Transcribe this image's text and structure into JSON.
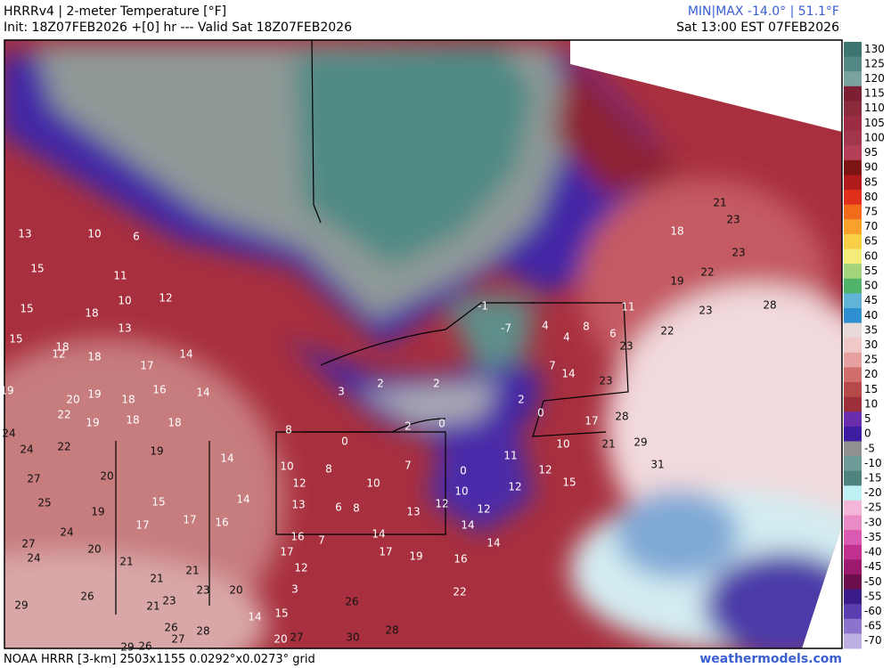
{
  "header": {
    "title": "HRRRv4 | 2-meter Temperature [°F]",
    "init": "Init: 18Z07FEB2026 +[0] hr --- Valid Sat 18Z07FEB2026",
    "minmax": "MIN|MAX -14.0° | 51.1°F",
    "valid_local": "Sat 13:00 EST 07FEB2026"
  },
  "footer": {
    "source": "NOAA HRRR [3-km] 2503x1155 0.0292°x0.0273° grid",
    "site": "weathermodels.com"
  },
  "colorbar": {
    "ticks": [
      130,
      125,
      120,
      115,
      110,
      105,
      100,
      95,
      90,
      85,
      80,
      75,
      70,
      65,
      60,
      55,
      50,
      45,
      40,
      35,
      30,
      25,
      20,
      15,
      10,
      5,
      0,
      -5,
      -10,
      -15,
      -20,
      -25,
      -30,
      -35,
      -40,
      -45,
      -50,
      -55,
      -60,
      -65,
      -70
    ],
    "colors": [
      "#3e7570",
      "#548884",
      "#7aa3a0",
      "#7c1f33",
      "#8c2a3c",
      "#9b2c44",
      "#a2364c",
      "#b53e59",
      "#7d1414",
      "#b01a1a",
      "#e0301c",
      "#f36b1a",
      "#f9a12a",
      "#f9d045",
      "#f3ec78",
      "#a3d37c",
      "#4fb469",
      "#62b4d6",
      "#2f8fd0",
      "#e8d9d9",
      "#f0c8c8",
      "#e6a0a0",
      "#d06d6d",
      "#b84949",
      "#9c2f39",
      "#6a2dab",
      "#3c1ca0",
      "#909090",
      "#6d9c98",
      "#4e837e",
      "#bff0f3",
      "#f3b6d9",
      "#e98bc5",
      "#d95ab0",
      "#c2308f",
      "#9c1a6e",
      "#6d0f4d",
      "#3b1d8a",
      "#5a3fb0",
      "#8a74cc",
      "#bdb0e0"
    ]
  },
  "station_temps": [
    13,
    10,
    6,
    15,
    11,
    10,
    12,
    15,
    18,
    13,
    15,
    18,
    12,
    18,
    17,
    14,
    19,
    20,
    19,
    18,
    16,
    14,
    22,
    19,
    18,
    18,
    24,
    24,
    22,
    19,
    14,
    27,
    20,
    25,
    19,
    15,
    14,
    17,
    16,
    17,
    27,
    24,
    20,
    24,
    21,
    21,
    23,
    20,
    21,
    21,
    23,
    26,
    29,
    26,
    28,
    27,
    29,
    26,
    14,
    15,
    20,
    27,
    30,
    28,
    26,
    3,
    12,
    17,
    16,
    7,
    14,
    17,
    19,
    16,
    22,
    8,
    0,
    10,
    8,
    12,
    13,
    6,
    8,
    10,
    7,
    13,
    12,
    10,
    0,
    12,
    14,
    14,
    11,
    12,
    12,
    15,
    3,
    2,
    2,
    2,
    0,
    2,
    0,
    -1,
    -7,
    4,
    4,
    8,
    6,
    7,
    14,
    10,
    17,
    11,
    23,
    23,
    28,
    21,
    29,
    31,
    21,
    23,
    18,
    23,
    22,
    19,
    23,
    22,
    28
  ]
}
